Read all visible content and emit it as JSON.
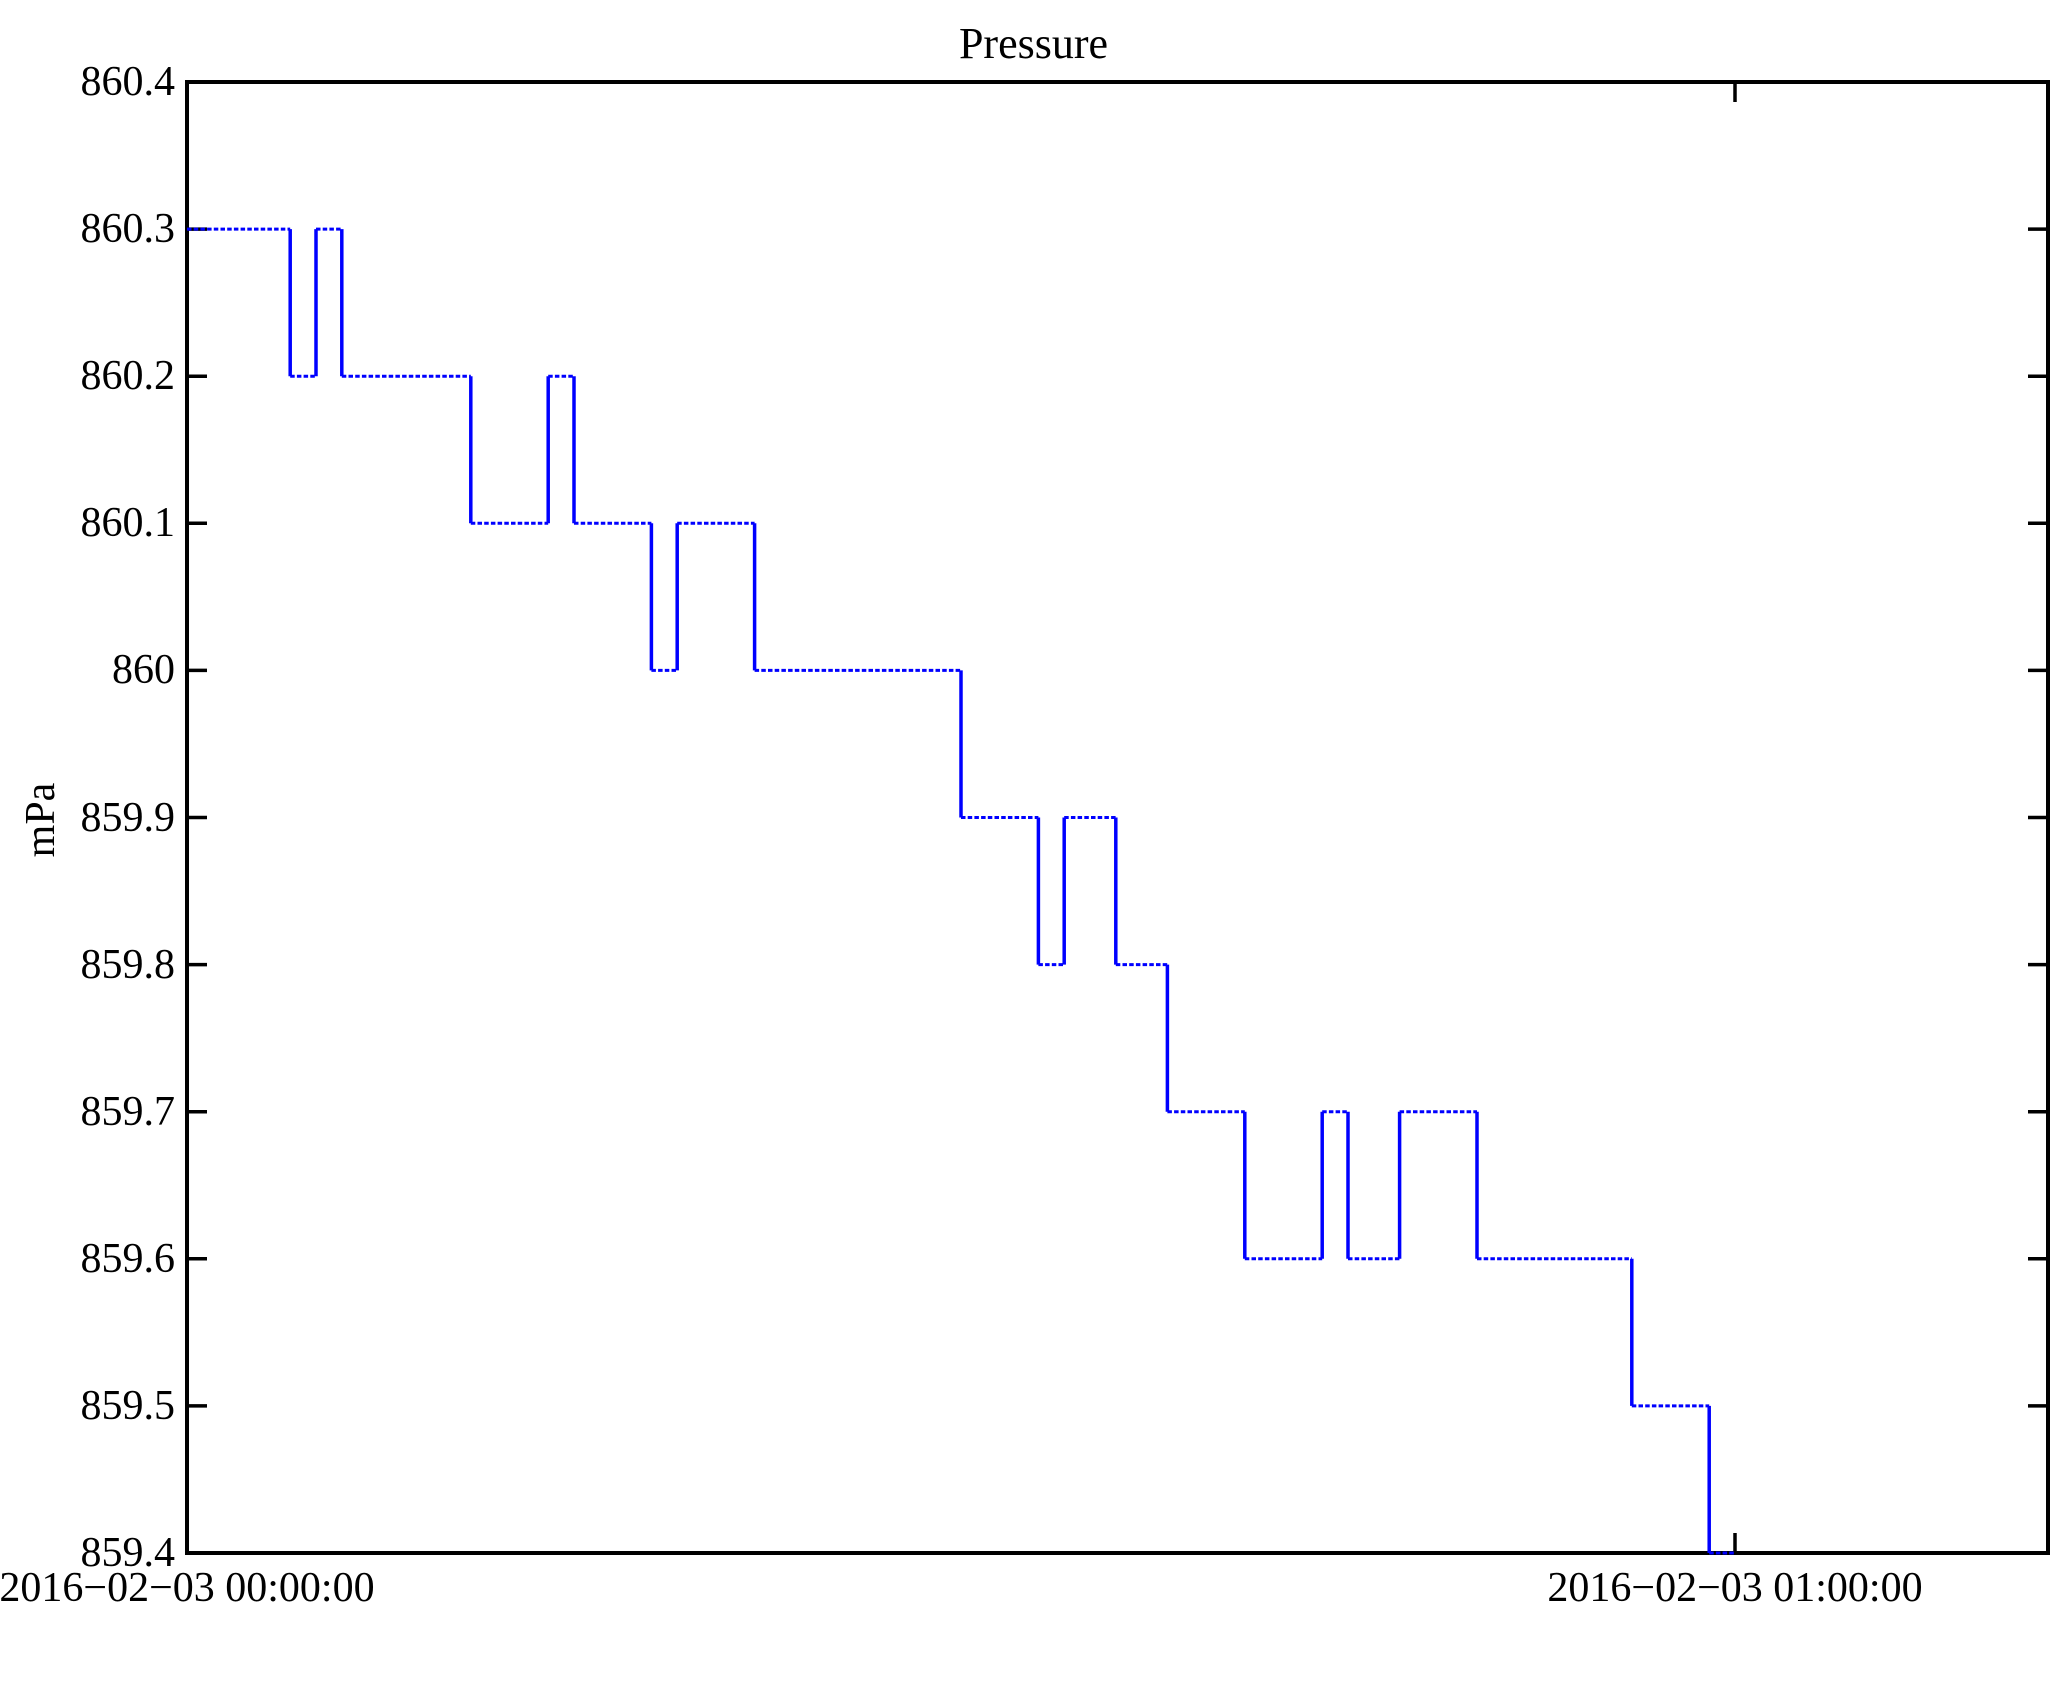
{
  "chart": {
    "title": "Pressure",
    "y_axis_label": "mPa"
  },
  "chart_data": {
    "type": "line",
    "subtype": "step-post",
    "title": "Pressure",
    "xlabel": "",
    "ylabel": "mPa",
    "ylim": [
      859.4,
      860.4
    ],
    "grid": false,
    "legend": "none",
    "line_color": "#0000FF",
    "axis_color": "#000000",
    "yticks": [
      "860.4",
      "860.3",
      "860.2",
      "860.1",
      "860",
      "859.9",
      "859.8",
      "859.7",
      "859.6",
      "859.5",
      "859.4"
    ],
    "xticks": [
      {
        "minutes": 0,
        "label": "2016−02−03 00:00:00"
      },
      {
        "minutes": 60,
        "label": "2016−02−03 01:00:00"
      }
    ],
    "series": [
      {
        "name": "Pressure",
        "unit": "mPa",
        "start_datetime_label": "2016−02−03 00:00:00",
        "points": [
          {
            "time": "00:00:00",
            "value": 860.3
          },
          {
            "time": "00:04:00",
            "value": 860.2
          },
          {
            "time": "00:05:00",
            "value": 860.3
          },
          {
            "time": "00:06:00",
            "value": 860.2
          },
          {
            "time": "00:11:00",
            "value": 860.1
          },
          {
            "time": "00:14:00",
            "value": 860.2
          },
          {
            "time": "00:15:00",
            "value": 860.1
          },
          {
            "time": "00:18:00",
            "value": 860.0
          },
          {
            "time": "00:19:00",
            "value": 860.1
          },
          {
            "time": "00:22:00",
            "value": 860.0
          },
          {
            "time": "00:30:00",
            "value": 859.9
          },
          {
            "time": "00:33:00",
            "value": 859.8
          },
          {
            "time": "00:34:00",
            "value": 859.9
          },
          {
            "time": "00:36:00",
            "value": 859.8
          },
          {
            "time": "00:38:00",
            "value": 859.7
          },
          {
            "time": "00:41:00",
            "value": 859.6
          },
          {
            "time": "00:44:00",
            "value": 859.7
          },
          {
            "time": "00:45:00",
            "value": 859.6
          },
          {
            "time": "00:47:00",
            "value": 859.7
          },
          {
            "time": "00:50:00",
            "value": 859.6
          },
          {
            "time": "00:56:00",
            "value": 859.5
          },
          {
            "time": "00:59:00",
            "value": 859.4
          },
          {
            "time": "01:00:00",
            "value": 859.4
          }
        ]
      }
    ]
  }
}
